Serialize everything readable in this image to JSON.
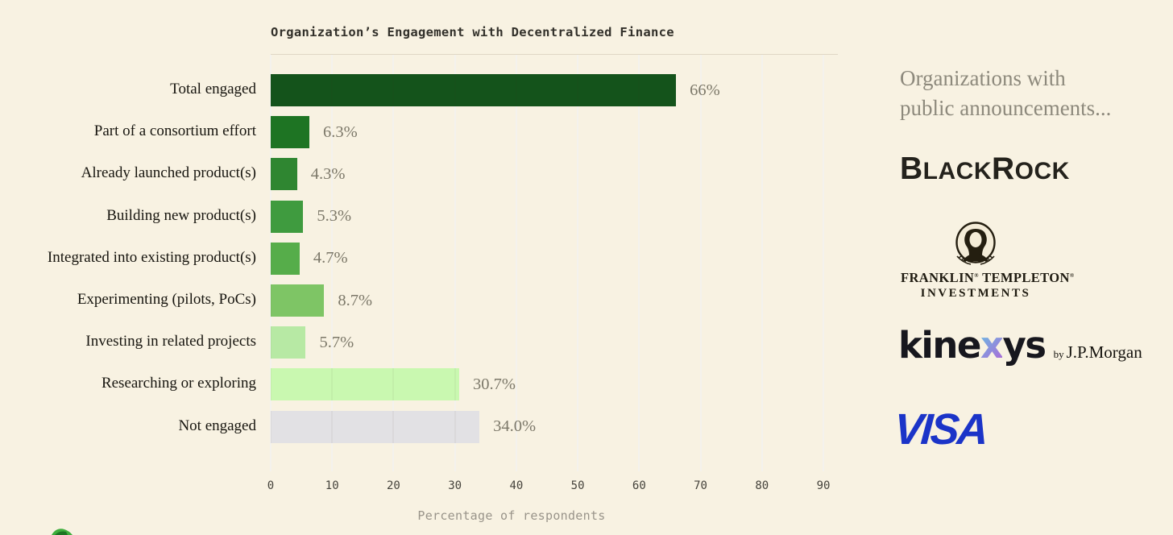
{
  "chart_data": {
    "type": "bar",
    "orientation": "horizontal",
    "title": "Organization’s Engagement with Decentralized Finance",
    "xlabel": "Percentage of respondents",
    "xlim": [
      0,
      90
    ],
    "x_ticks": [
      0,
      10,
      20,
      30,
      40,
      50,
      60,
      70,
      80,
      90
    ],
    "grid": true,
    "legend": "none",
    "categories": [
      "Total engaged",
      "Part of a consortium effort",
      "Already launched product(s)",
      "Building new product(s)",
      "Integrated into existing product(s)",
      "Experimenting (pilots, PoCs)",
      "Investing in related projects",
      "Researching or exploring",
      "Not engaged"
    ],
    "values": [
      66,
      6.3,
      4.3,
      5.3,
      4.7,
      8.7,
      5.7,
      30.7,
      34.0
    ],
    "value_labels": [
      "66%",
      "6.3%",
      "4.3%",
      "5.3%",
      "4.7%",
      "8.7%",
      "5.7%",
      "30.7%",
      "34.0%"
    ],
    "bar_colors": [
      "#14531b",
      "#1e7423",
      "#2f8631",
      "#3f9b3f",
      "#56ad4a",
      "#7ec565",
      "#b7e9a4",
      "#c9f8b0",
      "#e2e1e4"
    ]
  },
  "sidebar": {
    "heading_lines": [
      "Organizations with",
      "public announcements..."
    ],
    "logos": {
      "blackrock": {
        "name": "BlackRock",
        "segments": [
          "B",
          "LACK",
          "R",
          "OCK"
        ]
      },
      "franklin_templeton": {
        "name": "Franklin Templeton Investments",
        "word1": "FRANKLIN",
        "reg1": "®",
        "word2": "TEMPLETON",
        "reg2": "®",
        "line2": "INVESTMENTS"
      },
      "kinexys": {
        "name": "Kinexys by J.P.Morgan",
        "pre": "kine",
        "x": "x",
        "post": "ys",
        "by": "by",
        "company": "J.P.Morgan",
        "x_gradient": [
          "#5ec9e4",
          "#b45fd6"
        ]
      },
      "visa": {
        "name": "Visa",
        "wordmark": "VISA",
        "color": "#1b34c8"
      }
    }
  },
  "colors": {
    "background": "#f8f2e2",
    "title_text": "#32302a",
    "category_text": "#17150f",
    "value_text": "#7c7869",
    "tick_text": "#45433c",
    "axis_label_text": "#99948a",
    "sidebar_heading_text": "#8d897c",
    "logo_text": "#24221c",
    "sprout_green": "#3fae3d"
  }
}
